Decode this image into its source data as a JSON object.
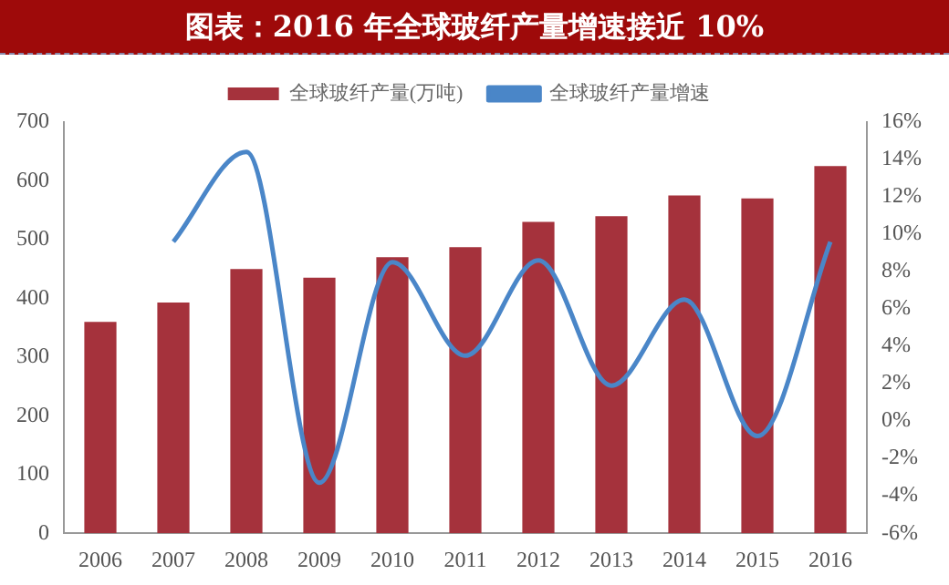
{
  "chart_data": {
    "type": "bar",
    "title": "图表：2016 年全球玻纤产量增速接近 10%",
    "categories": [
      "2006",
      "2007",
      "2008",
      "2009",
      "2010",
      "2011",
      "2012",
      "2013",
      "2014",
      "2015",
      "2016"
    ],
    "series": [
      {
        "name": "全球玻纤产量(万吨)",
        "color": "#a5323c",
        "values": [
          360,
          393,
          450,
          435,
          470,
          487,
          530,
          540,
          575,
          570,
          625
        ]
      },
      {
        "name": "全球玻纤产量增速",
        "type": "line",
        "axis": "y2",
        "color": "#4a86c8",
        "values": [
          null,
          9.6,
          14.4,
          -3.3,
          8.5,
          3.5,
          8.6,
          1.9,
          6.5,
          -0.8,
          9.6
        ]
      }
    ],
    "ylim": [
      0,
      700
    ],
    "yticks": [
      0,
      100,
      200,
      300,
      400,
      500,
      600,
      700
    ],
    "y2lim": [
      -6,
      16
    ],
    "y2ticks": [
      {
        "value": -6,
        "label": "-6%"
      },
      {
        "value": -4,
        "label": "-4%"
      },
      {
        "value": -2,
        "label": "-2%"
      },
      {
        "value": 0,
        "label": "0%"
      },
      {
        "value": 2,
        "label": "2%"
      },
      {
        "value": 4,
        "label": "4%"
      },
      {
        "value": 6,
        "label": "6%"
      },
      {
        "value": 8,
        "label": "8%"
      },
      {
        "value": 10,
        "label": "10%"
      },
      {
        "value": 12,
        "label": "12%"
      },
      {
        "value": 14,
        "label": "14%"
      },
      {
        "value": 16,
        "label": "16%"
      }
    ],
    "grid": false,
    "legend": "top",
    "marker": "none",
    "line_style": "solid"
  }
}
